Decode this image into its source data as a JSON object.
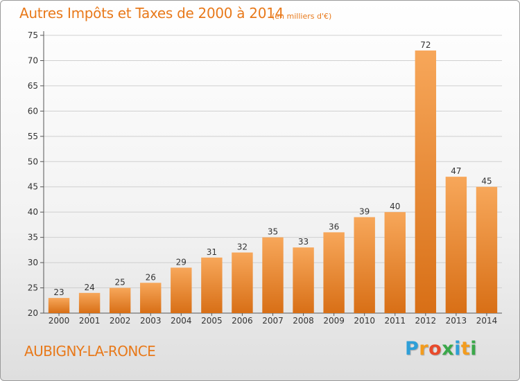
{
  "header": {
    "title": "Autres Impôts et Taxes de 2000 à 2014",
    "subtitle": "(en milliers d'€)"
  },
  "commune": "AUBIGNY-LA-RONCE",
  "logo": {
    "text": "Proxiti",
    "letters": [
      {
        "char": "P",
        "color": "#2e9fd8"
      },
      {
        "char": "r",
        "color": "#f39c1e"
      },
      {
        "char": "o",
        "color": "#e84a2b"
      },
      {
        "char": "x",
        "color": "#3aa84a"
      },
      {
        "char": "i",
        "color": "#2e9fd8"
      },
      {
        "char": "t",
        "color": "#f39c1e"
      },
      {
        "char": "i",
        "color": "#3aa84a"
      }
    ]
  },
  "colors": {
    "accent": "#e8791a",
    "bar_light": "#f7a75a",
    "bar_dark": "#d86f16",
    "grid": "#cfcfcf",
    "axis": "#555555"
  },
  "chart_data": {
    "type": "bar",
    "categories": [
      "2000",
      "2001",
      "2002",
      "2003",
      "2004",
      "2005",
      "2006",
      "2007",
      "2008",
      "2009",
      "2010",
      "2011",
      "2012",
      "2013",
      "2014"
    ],
    "values": [
      23,
      24,
      25,
      26,
      29,
      31,
      32,
      35,
      33,
      36,
      39,
      40,
      72,
      47,
      45
    ],
    "title": "Autres Impôts et Taxes de 2000 à 2014",
    "subtitle": "(en milliers d'€)",
    "xlabel": "",
    "ylabel": "",
    "ylim": [
      20,
      75
    ],
    "yticks": [
      20,
      25,
      30,
      35,
      40,
      45,
      50,
      55,
      60,
      65,
      70,
      75
    ],
    "grid": true,
    "data_labels": true
  }
}
